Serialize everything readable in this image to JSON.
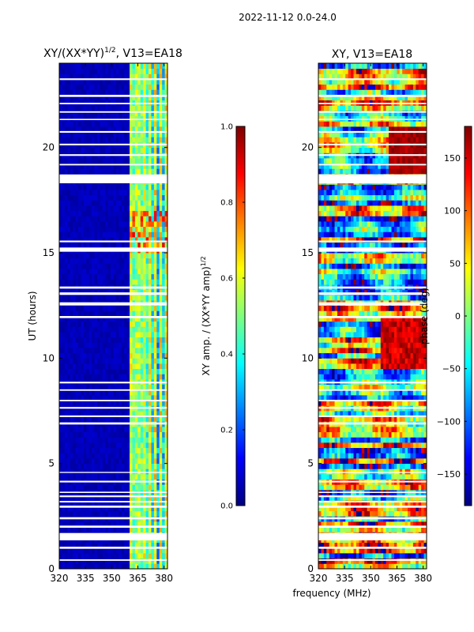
{
  "figure": {
    "suptitle": "2022-11-12 0.0-24.0"
  },
  "colormap_stops": [
    "#00007f",
    "#0000ff",
    "#007fff",
    "#00ffff",
    "#7fff7f",
    "#ffff00",
    "#ff7f00",
    "#ff0000",
    "#7f0000"
  ],
  "chart_data": [
    {
      "type": "heatmap",
      "title": "XY/(XX*YY)^1/2, V13=EA18",
      "title_parts": {
        "main": "XY/(XX*YY)",
        "sup": "1/2",
        "tail": ", V13=EA18"
      },
      "xlabel": "",
      "ylabel": "UT (hours)",
      "xlim": [
        320,
        382
      ],
      "ylim": [
        0,
        24
      ],
      "xticks": [
        320,
        335,
        350,
        365,
        380
      ],
      "yticks": [
        0,
        5,
        10,
        15,
        20
      ],
      "grid": false,
      "data_summary": "Mostly near 0 (dark blue) below ~360 MHz; 0.3-0.7 structure between ~362 and ~378 MHz; flagged (white) rows at many times, e.g. 1.35-1.7 h and 18.3-18.7 h",
      "colorbar": {
        "label_main": "XY amp. / (XX*YY amp)",
        "label_sup": "1/2",
        "range": [
          0.0,
          1.0
        ],
        "ticks": [
          "0.0",
          "0.2",
          "0.4",
          "0.6",
          "0.8",
          "1.0"
        ]
      }
    },
    {
      "type": "heatmap",
      "title": "XY, V13=EA18",
      "xlabel": "frequency (MHz)",
      "ylabel": "",
      "xlim": [
        320,
        382
      ],
      "ylim": [
        0,
        24
      ],
      "xticks": [
        320,
        335,
        350,
        365,
        380
      ],
      "yticks": [
        0,
        5,
        10,
        15,
        20
      ],
      "grid": false,
      "data_summary": "Phase wrapped -180..180 deg, noisy with frequency-dependent streaks; same flagged rows as left panel",
      "colorbar": {
        "label": "phase (deg)",
        "range": [
          -180,
          180
        ],
        "ticks": [
          "150",
          "100",
          "50",
          "0",
          "−50",
          "−100",
          "−150"
        ],
        "tick_values": [
          150,
          100,
          50,
          0,
          -50,
          -100,
          -150
        ]
      }
    }
  ]
}
